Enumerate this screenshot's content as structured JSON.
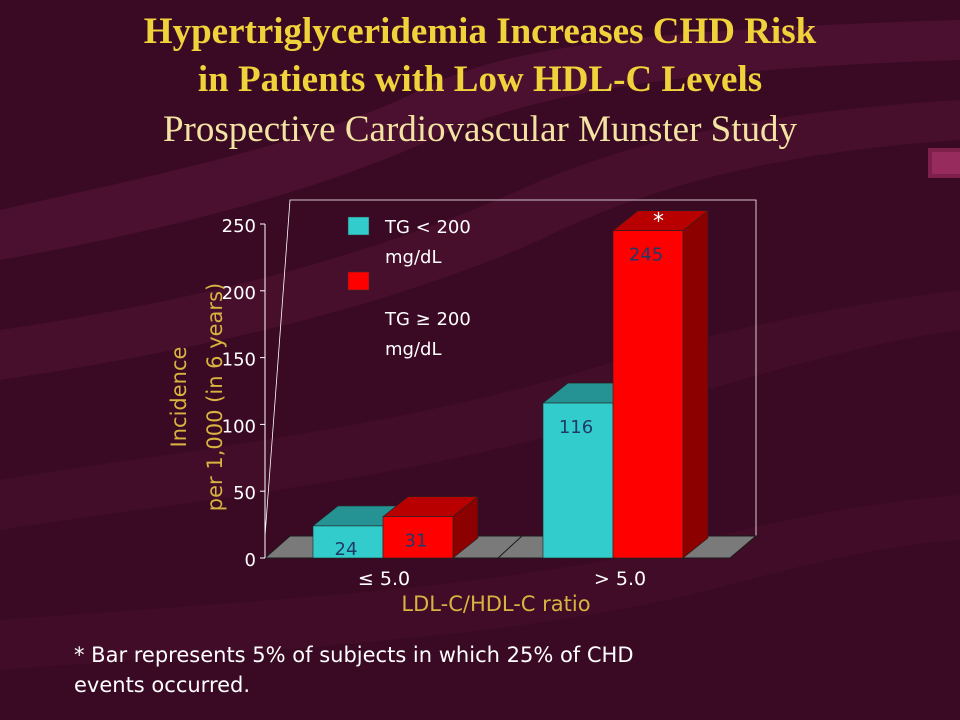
{
  "slide": {
    "title_line1": "Hypertriglyceridemia Increases CHD Risk",
    "title_line2": "in Patients with Low HDL-C Levels",
    "subtitle": "Prospective Cardiovascular Munster Study",
    "footnote_line1": "* Bar represents 5% of subjects in which 25% of CHD",
    "footnote_line2": "events occurred."
  },
  "colors": {
    "background": "#3a0a24",
    "title": "#f0d23a",
    "subtitle": "#f3e3a3",
    "axis_label": "#d9b341",
    "series_low": "#33cccc",
    "series_high": "#ff0000"
  },
  "chart_data": {
    "type": "bar",
    "style": "3d-clustered",
    "categories": [
      "≤ 5.0",
      "> 5.0"
    ],
    "series": [
      {
        "name": "TG < 200 mg/dL",
        "legend_line1": "TG < 200",
        "legend_line2": "mg/dL",
        "values": [
          24,
          116
        ]
      },
      {
        "name": "TG ≥ 200 mg/dL",
        "legend_line1": "TG ≥ 200",
        "legend_line2": "mg/dL",
        "values": [
          31,
          245
        ]
      }
    ],
    "data_labels": [
      [
        "24",
        "116"
      ],
      [
        "31",
        "245"
      ]
    ],
    "annotation": "*",
    "annotation_on": {
      "series": 1,
      "category": 1
    },
    "xlabel": "LDL-C/HDL-C ratio",
    "ylabel_line1": "Incidence",
    "ylabel_line2": "per 1,000 (in 6 years)",
    "ylim": [
      0,
      250
    ],
    "yticks": [
      "0",
      "50",
      "100",
      "150",
      "200",
      "250"
    ],
    "legend_position": "top-left"
  }
}
